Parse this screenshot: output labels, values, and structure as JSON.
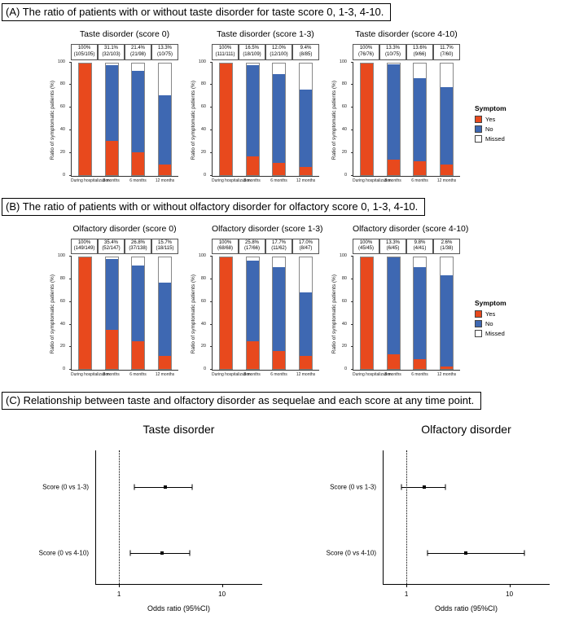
{
  "panels": {
    "A": {
      "label": "(A)",
      "title": "The ratio of patients with or without taste disorder for taste score 0, 1-3, 4-10."
    },
    "B": {
      "label": "(B)",
      "title": "The ratio of patients with or without olfactory disorder for olfactory score 0, 1-3, 4-10."
    },
    "C": {
      "label": "(C)",
      "title": "Relationship between taste and olfactory disorder as sequelae and each score at any time point."
    }
  },
  "legend": {
    "title": "Symptom",
    "items": [
      {
        "label": "Yes",
        "color": "#E8491D"
      },
      {
        "label": "No",
        "color": "#3E68B2"
      },
      {
        "label": "Missed",
        "color": "#FFFFFF"
      }
    ]
  },
  "chart_data": [
    {
      "type": "bar",
      "panel": "A",
      "title": "Taste disorder (score 0)",
      "ylabel": "Ratio of symptomatic patients (%)",
      "ylim": [
        0,
        100
      ],
      "yticks": [
        0,
        20,
        40,
        60,
        80,
        100
      ],
      "categories": [
        "During hospitalization",
        "3 months",
        "6 months",
        "12 months"
      ],
      "bar_labels": [
        [
          "100%",
          "(105/105)"
        ],
        [
          "31.1%",
          "(32/103)"
        ],
        [
          "21.4%",
          "(21/98)"
        ],
        [
          "13.3%",
          "(10/75)"
        ]
      ],
      "series": [
        {
          "name": "Yes",
          "values": [
            100,
            30.5,
            20.0,
            9.5
          ]
        },
        {
          "name": "No",
          "values": [
            0,
            67.6,
            73.3,
            61.9
          ]
        },
        {
          "name": "Missed",
          "values": [
            0,
            1.9,
            6.7,
            28.6
          ]
        }
      ]
    },
    {
      "type": "bar",
      "panel": "A",
      "title": "Taste disorder (score 1-3)",
      "ylabel": "Ratio of symptomatic patients (%)",
      "ylim": [
        0,
        100
      ],
      "yticks": [
        0,
        20,
        40,
        60,
        80,
        100
      ],
      "categories": [
        "During hospitalization",
        "3 months",
        "6 months",
        "12 months"
      ],
      "bar_labels": [
        [
          "100%",
          "(111/111)"
        ],
        [
          "16.5%",
          "(18/109)"
        ],
        [
          "12.0%",
          "(12/100)"
        ],
        [
          "9.4%",
          "(8/85)"
        ]
      ],
      "series": [
        {
          "name": "Yes",
          "values": [
            100,
            16.2,
            10.8,
            7.2
          ]
        },
        {
          "name": "No",
          "values": [
            0,
            82.0,
            79.3,
            69.4
          ]
        },
        {
          "name": "Missed",
          "values": [
            0,
            1.8,
            9.9,
            23.4
          ]
        }
      ]
    },
    {
      "type": "bar",
      "panel": "A",
      "title": "Taste disorder (score 4-10)",
      "ylabel": "Ratio of symptomatic patients (%)",
      "ylim": [
        0,
        100
      ],
      "yticks": [
        0,
        20,
        40,
        60,
        80,
        100
      ],
      "categories": [
        "During hospitalization",
        "3 months",
        "6 months",
        "12 months"
      ],
      "bar_labels": [
        [
          "100%",
          "(76/76)"
        ],
        [
          "13.3%",
          "(10/75)"
        ],
        [
          "13.6%",
          "(9/66)"
        ],
        [
          "11.7%",
          "(7/60)"
        ]
      ],
      "series": [
        {
          "name": "Yes",
          "values": [
            100,
            13.2,
            11.8,
            9.2
          ]
        },
        {
          "name": "No",
          "values": [
            0,
            85.5,
            75.0,
            69.7
          ]
        },
        {
          "name": "Missed",
          "values": [
            0,
            1.3,
            13.2,
            21.1
          ]
        }
      ]
    },
    {
      "type": "bar",
      "panel": "B",
      "title": "Olfactory disorder (score 0)",
      "ylabel": "Ratio of symptomatic patients (%)",
      "ylim": [
        0,
        100
      ],
      "yticks": [
        0,
        20,
        40,
        60,
        80,
        100
      ],
      "categories": [
        "During hospitalization",
        "3 months",
        "6 months",
        "12 months"
      ],
      "bar_labels": [
        [
          "100%",
          "(149/149)"
        ],
        [
          "35.4%",
          "(52/147)"
        ],
        [
          "26.8%",
          "(37/138)"
        ],
        [
          "15.7%",
          "(18/115)"
        ]
      ],
      "series": [
        {
          "name": "Yes",
          "values": [
            100,
            34.9,
            24.8,
            12.1
          ]
        },
        {
          "name": "No",
          "values": [
            0,
            63.8,
            67.8,
            65.1
          ]
        },
        {
          "name": "Missed",
          "values": [
            0,
            1.3,
            7.4,
            22.8
          ]
        }
      ]
    },
    {
      "type": "bar",
      "panel": "B",
      "title": "Olfactory disorder (score 1-3)",
      "ylabel": "Ratio of symptomatic patients (%)",
      "ylim": [
        0,
        100
      ],
      "yticks": [
        0,
        20,
        40,
        60,
        80,
        100
      ],
      "categories": [
        "During hospitalization",
        "3 months",
        "6 months",
        "12 months"
      ],
      "bar_labels": [
        [
          "100%",
          "(68/68)"
        ],
        [
          "25.8%",
          "(17/66)"
        ],
        [
          "17.7%",
          "(11/62)"
        ],
        [
          "17.0%",
          "(8/47)"
        ]
      ],
      "series": [
        {
          "name": "Yes",
          "values": [
            100,
            25.0,
            16.2,
            11.8
          ]
        },
        {
          "name": "No",
          "values": [
            0,
            72.1,
            75.0,
            57.3
          ]
        },
        {
          "name": "Missed",
          "values": [
            0,
            2.9,
            8.8,
            30.9
          ]
        }
      ]
    },
    {
      "type": "bar",
      "panel": "B",
      "title": "Olfactory disorder (score 4-10)",
      "ylabel": "Ratio of symptomatic patients (%)",
      "ylim": [
        0,
        100
      ],
      "yticks": [
        0,
        20,
        40,
        60,
        80,
        100
      ],
      "categories": [
        "During hospitalization",
        "3 months",
        "6 months",
        "12 months"
      ],
      "bar_labels": [
        [
          "100%",
          "(45/45)"
        ],
        [
          "13.3%",
          "(6/45)"
        ],
        [
          "9.8%",
          "(4/41)"
        ],
        [
          "2.6%",
          "(1/38)"
        ]
      ],
      "series": [
        {
          "name": "Yes",
          "values": [
            100,
            13.3,
            8.9,
            2.2
          ]
        },
        {
          "name": "No",
          "values": [
            0,
            86.7,
            82.2,
            82.2
          ]
        },
        {
          "name": "Missed",
          "values": [
            0,
            0,
            8.9,
            15.6
          ]
        }
      ]
    },
    {
      "type": "forest",
      "panel": "C",
      "title": "Taste disorder",
      "xlabel": "Odds ratio (95%CI)",
      "xscale": "log",
      "xlim": [
        0.6,
        25
      ],
      "xticks": [
        1,
        10
      ],
      "refline": 1,
      "rows": [
        {
          "label": "Score (0 vs 1-3)",
          "or": 2.8,
          "ci_low": 1.4,
          "ci_high": 5.1
        },
        {
          "label": "Score (0 vs 4-10)",
          "or": 2.6,
          "ci_low": 1.3,
          "ci_high": 4.9
        }
      ]
    },
    {
      "type": "forest",
      "panel": "C",
      "title": "Olfactory disorder",
      "xlabel": "Odds ratio (95%CI)",
      "xscale": "log",
      "xlim": [
        0.6,
        25
      ],
      "xticks": [
        1,
        10
      ],
      "refline": 1,
      "rows": [
        {
          "label": "Score (0 vs 1-3)",
          "or": 1.5,
          "ci_low": 0.9,
          "ci_high": 2.4
        },
        {
          "label": "Score (0 vs 4-10)",
          "or": 3.8,
          "ci_low": 1.6,
          "ci_high": 14.0
        }
      ]
    }
  ]
}
